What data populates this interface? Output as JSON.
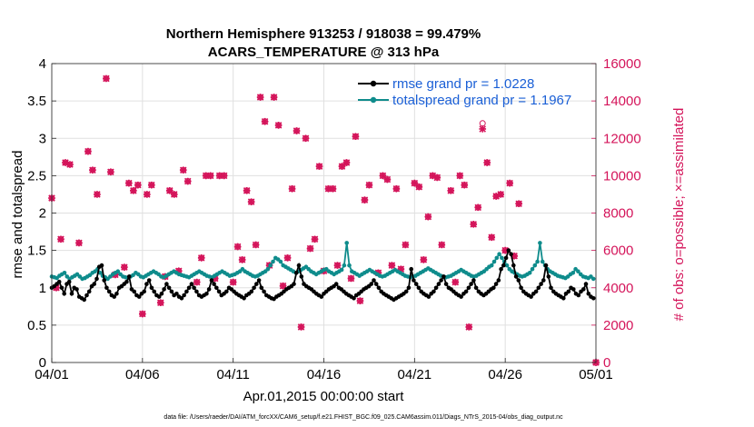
{
  "chart_data": {
    "type": "line",
    "title": "Northern Hemisphere 913253 / 918038 = 99.479%",
    "subtitle": "ACARS_TEMPERATURE @ 313 hPa",
    "xlabel": "Apr.01,2015 00:00:00 start",
    "ylabel_left": "rmse and totalspread",
    "ylabel_right": "# of obs: o=possible; ×=assimilated",
    "footer": "data file: /Users/raeder/DAI/ATM_forcXX/CAM6_setup/f.e21.FHIST_BGC.f09_025.CAM6assim.011/Diags_NTrS_2015-04/obs_diag_output.nc",
    "xlim": [
      0,
      30
    ],
    "x_ticks": [
      0,
      5,
      10,
      15,
      20,
      25,
      30
    ],
    "x_tick_labels": [
      "04/01",
      "04/06",
      "04/11",
      "04/16",
      "04/21",
      "04/26",
      "05/01"
    ],
    "ylim_left": [
      0,
      4
    ],
    "y_left_ticks": [
      0,
      0.5,
      1,
      1.5,
      2,
      2.5,
      3,
      3.5,
      4
    ],
    "y_left_tick_labels": [
      "0",
      "0.5",
      "1",
      "1.5",
      "2",
      "2.5",
      "3",
      "3.5",
      "4"
    ],
    "ylim_right": [
      0,
      16000
    ],
    "y_right_ticks": [
      0,
      2000,
      4000,
      6000,
      8000,
      10000,
      12000,
      14000,
      16000
    ],
    "y_right_tick_labels": [
      "0",
      "2000",
      "4000",
      "6000",
      "8000",
      "10000",
      "12000",
      "14000",
      "16000"
    ],
    "grid": true,
    "legend_position": "top-right",
    "series": [
      {
        "name": "rmse grand pr = 1.0228",
        "axis": "left",
        "color": "#000000",
        "marker": "filled-circle",
        "values": [
          1.0,
          1.02,
          1.05,
          1.08,
          1.0,
          0.92,
          1.05,
          1.08,
          0.92,
          1.0,
          0.98,
          0.88,
          0.86,
          0.84,
          0.9,
          0.95,
          1.02,
          1.05,
          1.12,
          1.28,
          1.3,
          1.1,
          1.0,
          0.95,
          0.9,
          0.88,
          0.92,
          1.0,
          1.02,
          1.05,
          1.08,
          1.15,
          0.98,
          0.95,
          0.9,
          0.88,
          0.92,
          0.95,
          1.05,
          1.1,
          1.0,
          0.95,
          0.9,
          0.88,
          0.92,
          0.98,
          1.05,
          1.0,
          0.95,
          0.9,
          0.92,
          0.88,
          0.86,
          0.9,
          0.95,
          1.0,
          1.05,
          1.0,
          0.95,
          0.9,
          0.88,
          0.9,
          0.92,
          0.98,
          1.1,
          1.05,
          1.0,
          0.95,
          0.9,
          0.92,
          0.95,
          1.0,
          0.98,
          0.95,
          0.92,
          0.9,
          0.88,
          0.86,
          0.9,
          0.92,
          0.95,
          1.0,
          1.05,
          1.1,
          1.0,
          0.95,
          0.9,
          0.88,
          0.86,
          0.85,
          0.88,
          0.9,
          0.92,
          0.95,
          0.98,
          1.0,
          1.02,
          1.05,
          1.2,
          1.3,
          1.15,
          1.05,
          1.02,
          1.0,
          0.98,
          0.95,
          0.92,
          0.9,
          0.88,
          0.92,
          0.95,
          0.98,
          1.0,
          1.02,
          1.05,
          1.0,
          0.98,
          0.95,
          0.92,
          0.9,
          0.88,
          0.86,
          0.9,
          0.92,
          0.95,
          0.98,
          1.0,
          1.02,
          1.05,
          1.1,
          1.05,
          1.0,
          0.95,
          0.92,
          0.9,
          0.88,
          0.86,
          0.84,
          0.86,
          0.88,
          0.9,
          0.92,
          0.95,
          1.0,
          1.25,
          1.1,
          1.05,
          1.0,
          0.95,
          0.92,
          0.9,
          0.88,
          0.92,
          0.95,
          1.0,
          1.05,
          1.1,
          1.15,
          1.05,
          1.0,
          0.98,
          0.95,
          0.92,
          0.9,
          0.88,
          0.92,
          0.95,
          1.0,
          1.05,
          1.1,
          1.0,
          0.95,
          0.92,
          0.9,
          0.92,
          0.95,
          0.98,
          1.0,
          1.05,
          1.1,
          1.25,
          1.3,
          1.4,
          1.5,
          1.45,
          1.3,
          1.15,
          1.1,
          1.0,
          0.95,
          0.92,
          0.9,
          0.88,
          0.92,
          0.95,
          1.0,
          1.05,
          1.1,
          1.3,
          1.15,
          1.0,
          0.95,
          0.92,
          0.9,
          0.88,
          0.86,
          0.92,
          0.95,
          1.0,
          0.98,
          0.92,
          0.9,
          0.95,
          0.98,
          1.05,
          0.92,
          0.88,
          0.86
        ]
      },
      {
        "name": "totalspread grand pr = 1.1967",
        "axis": "left",
        "color": "#0f8c8c",
        "marker": "filled-circle",
        "values": [
          1.15,
          1.14,
          1.13,
          1.16,
          1.18,
          1.2,
          1.15,
          1.12,
          1.14,
          1.16,
          1.18,
          1.15,
          1.12,
          1.13,
          1.15,
          1.17,
          1.2,
          1.22,
          1.25,
          1.2,
          1.16,
          1.14,
          1.12,
          1.15,
          1.18,
          1.2,
          1.22,
          1.18,
          1.15,
          1.14,
          1.13,
          1.15,
          1.17,
          1.2,
          1.18,
          1.15,
          1.14,
          1.16,
          1.18,
          1.2,
          1.22,
          1.2,
          1.18,
          1.15,
          1.14,
          1.16,
          1.18,
          1.2,
          1.22,
          1.2,
          1.18,
          1.17,
          1.16,
          1.15,
          1.14,
          1.16,
          1.18,
          1.2,
          1.22,
          1.2,
          1.18,
          1.16,
          1.15,
          1.14,
          1.16,
          1.18,
          1.2,
          1.22,
          1.2,
          1.18,
          1.16,
          1.17,
          1.18,
          1.2,
          1.22,
          1.25,
          1.22,
          1.2,
          1.18,
          1.16,
          1.15,
          1.16,
          1.18,
          1.2,
          1.22,
          1.25,
          1.3,
          1.35,
          1.4,
          1.38,
          1.35,
          1.3,
          1.28,
          1.26,
          1.24,
          1.22,
          1.2,
          1.22,
          1.24,
          1.26,
          1.28,
          1.25,
          1.22,
          1.2,
          1.18,
          1.2,
          1.22,
          1.24,
          1.25,
          1.22,
          1.2,
          1.18,
          1.2,
          1.22,
          1.24,
          1.3,
          1.6,
          1.3,
          1.22,
          1.2,
          1.18,
          1.16,
          1.18,
          1.2,
          1.22,
          1.24,
          1.22,
          1.2,
          1.18,
          1.16,
          1.15,
          1.16,
          1.18,
          1.2,
          1.22,
          1.24,
          1.22,
          1.2,
          1.18,
          1.16,
          1.15,
          1.14,
          1.15,
          1.16,
          1.18,
          1.2,
          1.22,
          1.24,
          1.26,
          1.24,
          1.22,
          1.2,
          1.18,
          1.16,
          1.15,
          1.14,
          1.15,
          1.16,
          1.18,
          1.2,
          1.22,
          1.24,
          1.22,
          1.2,
          1.18,
          1.16,
          1.15,
          1.16,
          1.18,
          1.2,
          1.22,
          1.25,
          1.28,
          1.3,
          1.35,
          1.4,
          1.45,
          1.4,
          1.35,
          1.3,
          1.25,
          1.22,
          1.2,
          1.18,
          1.16,
          1.15,
          1.16,
          1.18,
          1.2,
          1.25,
          1.3,
          1.35,
          1.6,
          1.35,
          1.3,
          1.25,
          1.22,
          1.2,
          1.18,
          1.16,
          1.15,
          1.14,
          1.13,
          1.15,
          1.18,
          1.2,
          1.25,
          1.22,
          1.18,
          1.15,
          1.14,
          1.13,
          1.15,
          1.12
        ]
      },
      {
        "name": "obs possible",
        "axis": "right",
        "color": "#d4145a",
        "marker": "open-circle",
        "values": [
          8800,
          4000,
          6600,
          10700,
          10600,
          6400,
          11300,
          10300,
          9000,
          15200,
          10200,
          4700,
          5100,
          9600,
          9200,
          9500,
          2600,
          9000,
          9500,
          3200,
          4600,
          9200,
          9000,
          4900,
          10300,
          9700,
          4300,
          5600,
          10000,
          10000,
          4500,
          10000,
          10000,
          4300,
          6200,
          5500,
          9200,
          8600,
          6300,
          14200,
          12900,
          5200,
          14200,
          12700,
          4100,
          5600,
          9300,
          12400,
          1900,
          12000,
          6100,
          6600,
          10500,
          4900,
          9300,
          9300,
          5200,
          10500,
          10700,
          4500,
          12100,
          3300,
          8700,
          9500,
          4800,
          10000,
          9800,
          5200,
          9300,
          5000,
          6300,
          9600,
          9400,
          5500,
          7800,
          10000,
          9900,
          6300,
          9200,
          4300,
          10000,
          9500,
          1900,
          7400,
          8300,
          12800,
          10700,
          6700,
          8900,
          9000,
          6000,
          9600,
          5700,
          8500
        ]
      },
      {
        "name": "obs assimilated",
        "axis": "right",
        "color": "#d4145a",
        "marker": "cross",
        "values": [
          8800,
          4000,
          6600,
          10700,
          10600,
          6400,
          11300,
          10300,
          9000,
          15200,
          10200,
          4700,
          5100,
          9600,
          9200,
          9500,
          2600,
          9000,
          9500,
          3200,
          4600,
          9200,
          9000,
          4900,
          10300,
          9700,
          4300,
          5600,
          10000,
          10000,
          4500,
          10000,
          10000,
          4300,
          6200,
          5500,
          9200,
          8600,
          6300,
          14200,
          12900,
          5200,
          14200,
          12700,
          4100,
          5600,
          9300,
          12400,
          1900,
          12000,
          6100,
          6600,
          10500,
          4900,
          9300,
          9300,
          5200,
          10500,
          10700,
          4500,
          12100,
          3300,
          8700,
          9500,
          4800,
          10000,
          9800,
          5200,
          9300,
          5000,
          6300,
          9600,
          9400,
          5500,
          7800,
          10000,
          9900,
          6300,
          9200,
          4300,
          10000,
          9500,
          1900,
          7400,
          8300,
          12500,
          10700,
          6700,
          8900,
          9000,
          6000,
          9600,
          5700,
          8500
        ]
      }
    ],
    "obs_x": [
      0.0,
      0.25,
      0.5,
      0.75,
      1.0,
      1.5,
      2.0,
      2.25,
      2.5,
      3.0,
      3.25,
      3.5,
      4.0,
      4.25,
      4.5,
      4.75,
      5.0,
      5.25,
      5.5,
      6.0,
      6.25,
      6.5,
      6.75,
      7.0,
      7.25,
      7.5,
      8.0,
      8.25,
      8.5,
      8.75,
      9.0,
      9.25,
      9.5,
      10.0,
      10.25,
      10.5,
      10.75,
      11.0,
      11.25,
      11.5,
      11.75,
      12.0,
      12.25,
      12.5,
      12.75,
      13.0,
      13.25,
      13.5,
      13.75,
      14.0,
      14.25,
      14.5,
      14.75,
      15.0,
      15.25,
      15.5,
      15.75,
      16.0,
      16.25,
      16.5,
      16.75,
      17.0,
      17.25,
      17.5,
      18.0,
      18.25,
      18.5,
      18.75,
      19.0,
      19.25,
      19.5,
      20.0,
      20.25,
      20.5,
      20.75,
      21.0,
      21.25,
      21.5,
      22.0,
      22.25,
      22.5,
      22.75,
      23.0,
      23.25,
      23.5,
      23.75,
      24.0,
      24.25,
      24.5,
      24.75,
      25.0,
      25.25,
      25.5,
      25.75
    ],
    "obs_special_x": [
      30.0
    ],
    "obs_special_values": [
      0
    ]
  }
}
